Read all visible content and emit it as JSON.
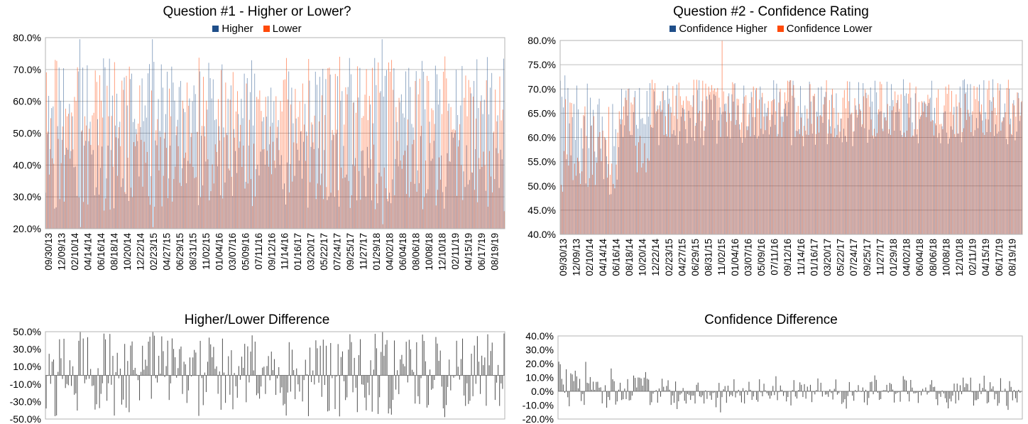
{
  "colors": {
    "higher": "#1f4e89",
    "lower": "#ff4a0a",
    "difference": "#555555",
    "grid": "#bfbfbf"
  },
  "chart_data": [
    {
      "id": "q1",
      "type": "bar",
      "title": "Question #1 - Higher or Lower?",
      "legend": [
        "Higher",
        "Lower"
      ],
      "legend_position": "top",
      "ylim": [
        20,
        80
      ],
      "yticks": [
        "80.0%",
        "70.0%",
        "60.0%",
        "50.0%",
        "40.0%",
        "30.0%",
        "20.0%"
      ],
      "tick_labels": [
        "09/30/13",
        "12/09/13",
        "02/10/14",
        "04/14/14",
        "06/16/14",
        "08/18/14",
        "10/20/14",
        "12/22/14",
        "02/23/15",
        "04/27/15",
        "06/29/15",
        "08/31/15",
        "11/02/15",
        "01/04/16",
        "03/07/16",
        "05/09/16",
        "07/11/16",
        "09/12/16",
        "11/14/16",
        "01/16/17",
        "03/20/17",
        "05/22/17",
        "07/24/17",
        "09/25/17",
        "11/27/17",
        "01/29/18",
        "04/02/18",
        "06/04/18",
        "08/06/18",
        "10/08/18",
        "12/10/18",
        "02/11/19",
        "04/15/19",
        "06/17/19",
        "08/19/19"
      ],
      "grid": true,
      "n_weeks": 310,
      "series": [
        {
          "name": "Higher",
          "values": []
        },
        {
          "name": "Lower",
          "values": []
        }
      ]
    },
    {
      "id": "q2",
      "type": "bar",
      "title": "Question #2 - Confidence Rating",
      "legend": [
        "Confidence Higher",
        "Confidence Lower"
      ],
      "legend_position": "top",
      "ylim": [
        40,
        80
      ],
      "yticks": [
        "80.0%",
        "75.0%",
        "70.0%",
        "65.0%",
        "60.0%",
        "55.0%",
        "50.0%",
        "45.0%",
        "40.0%"
      ],
      "tick_labels": [
        "09/30/13",
        "12/09/13",
        "02/10/14",
        "04/14/14",
        "06/16/14",
        "08/18/14",
        "10/20/14",
        "12/22/14",
        "02/23/15",
        "04/27/15",
        "06/29/15",
        "08/31/15",
        "11/02/15",
        "01/04/16",
        "03/07/16",
        "05/09/16",
        "07/11/16",
        "09/12/16",
        "11/14/16",
        "01/16/17",
        "03/20/17",
        "05/22/17",
        "07/24/17",
        "09/25/17",
        "11/27/17",
        "01/29/18",
        "04/02/18",
        "06/04/18",
        "08/06/18",
        "10/08/18",
        "12/10/18",
        "02/11/19",
        "04/15/19",
        "06/17/19",
        "08/19/19"
      ],
      "grid": true,
      "n_weeks": 310,
      "series": [
        {
          "name": "Confidence Higher",
          "values": []
        },
        {
          "name": "Confidence Lower",
          "values": []
        }
      ]
    },
    {
      "id": "d1",
      "type": "bar",
      "title": "Higher/Lower Difference",
      "ylim": [
        -50,
        50
      ],
      "yticks": [
        "50.0%",
        "30.0%",
        "10.0%",
        "-10.0%",
        "-30.0%",
        "-50.0%"
      ],
      "grid": false,
      "n_weeks": 310,
      "series": [
        {
          "values": []
        }
      ]
    },
    {
      "id": "d2",
      "type": "bar",
      "title": "Confidence Difference",
      "ylim": [
        -20,
        40
      ],
      "yticks": [
        "40.0%",
        "30.0%",
        "20.0%",
        "10.0%",
        "0.0%",
        "-10.0%",
        "-20.0%"
      ],
      "grid": false,
      "n_weeks": 310,
      "series": [
        {
          "values": []
        }
      ]
    }
  ]
}
